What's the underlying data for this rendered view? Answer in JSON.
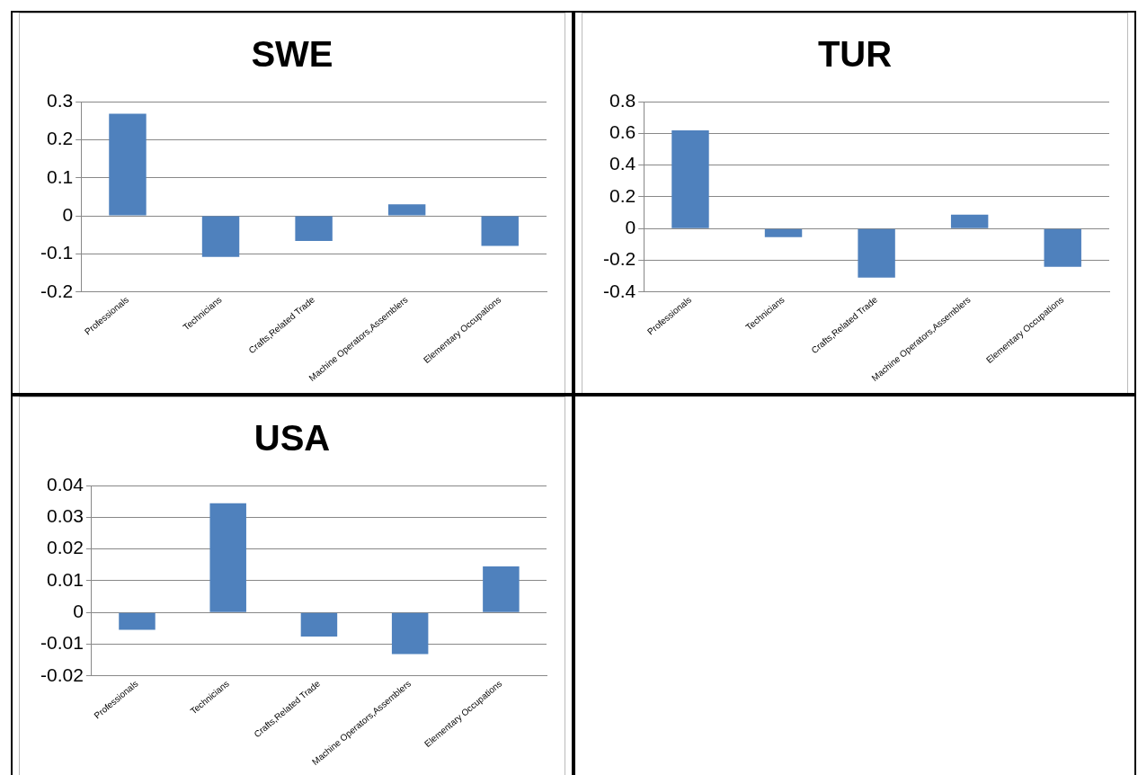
{
  "chart_data": [
    {
      "type": "bar",
      "title": "SWE",
      "categories": [
        "Professionals",
        "Technicians",
        "Crafts,Related Trade",
        "Machine Operators,Assemblers",
        "Elementary Occupations"
      ],
      "values": [
        0.268,
        -0.108,
        -0.066,
        0.03,
        -0.079
      ],
      "color": "#4f81bd",
      "ylim": [
        -0.2,
        0.3
      ],
      "yticks": [
        -0.2,
        -0.1,
        0,
        0.1,
        0.2,
        0.3
      ],
      "grid": "y"
    },
    {
      "type": "bar",
      "title": "TUR",
      "categories": [
        "Professionals",
        "Technicians",
        "Crafts,Related Trade",
        "Machine Operators,Assemblers",
        "Elementary Occupations"
      ],
      "values": [
        0.618,
        -0.054,
        -0.309,
        0.088,
        -0.241
      ],
      "color": "#4f81bd",
      "ylim": [
        -0.4,
        0.8
      ],
      "yticks": [
        -0.4,
        -0.2,
        0,
        0.2,
        0.4,
        0.6,
        0.8
      ],
      "grid": "y"
    },
    {
      "type": "bar",
      "title": "USA",
      "categories": [
        "Professionals",
        "Technicians",
        "Crafts,Related Trade",
        "Machine Operators,Assemblers",
        "Elementary Occupations"
      ],
      "values": [
        -0.0055,
        0.0344,
        -0.0076,
        -0.0131,
        0.0145
      ],
      "color": "#4f81bd",
      "ylim": [
        -0.02,
        0.04
      ],
      "yticks": [
        -0.02,
        -0.01,
        0,
        0.01,
        0.02,
        0.03,
        0.04
      ],
      "grid": "y"
    }
  ]
}
